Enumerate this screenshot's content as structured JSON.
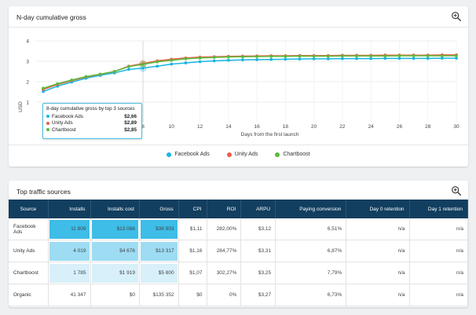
{
  "chart_card": {
    "title": "N-day cumulative gross",
    "legend_facebook": "Facebook Ads",
    "legend_unity": "Unity Ads",
    "legend_chartboost": "Chartboost"
  },
  "tooltip": {
    "title": "8-day cumulative gross by top 3 sources",
    "rows": [
      {
        "name": "Facebook Ads",
        "value": "$2,66"
      },
      {
        "name": "Unity Ads",
        "value": "$2,89"
      },
      {
        "name": "Chartboost",
        "value": "$2,85"
      }
    ]
  },
  "chart_data": {
    "type": "line",
    "title": "N-day cumulative gross",
    "xlabel": "Days from the first launch",
    "ylabel": "USD",
    "xlim": [
      0,
      30
    ],
    "ylim": [
      0,
      4
    ],
    "x_ticks": [
      8,
      10,
      12,
      14,
      16,
      18,
      20,
      22,
      24,
      26,
      28,
      30
    ],
    "y_ticks": [
      1,
      2,
      3,
      4
    ],
    "grid": true,
    "legend_position": "bottom",
    "x": [
      1,
      2,
      3,
      4,
      5,
      6,
      7,
      8,
      9,
      10,
      11,
      12,
      13,
      14,
      15,
      16,
      17,
      18,
      19,
      20,
      21,
      22,
      23,
      24,
      25,
      26,
      27,
      28,
      29,
      30
    ],
    "series": [
      {
        "name": "Facebook Ads",
        "color": "#1bb6e4",
        "values": [
          1.52,
          1.78,
          1.98,
          2.17,
          2.31,
          2.43,
          2.6,
          2.66,
          2.76,
          2.86,
          2.92,
          2.98,
          3.02,
          3.05,
          3.07,
          3.08,
          3.09,
          3.1,
          3.11,
          3.12,
          3.12,
          3.13,
          3.13,
          3.13,
          3.14,
          3.14,
          3.14,
          3.14,
          3.15,
          3.15
        ]
      },
      {
        "name": "Unity Ads",
        "color": "#ef5b4a",
        "values": [
          1.62,
          1.86,
          2.05,
          2.23,
          2.36,
          2.5,
          2.76,
          2.89,
          3.02,
          3.1,
          3.16,
          3.2,
          3.22,
          3.24,
          3.25,
          3.26,
          3.27,
          3.27,
          3.28,
          3.28,
          3.28,
          3.29,
          3.29,
          3.29,
          3.3,
          3.3,
          3.3,
          3.3,
          3.31,
          3.31
        ]
      },
      {
        "name": "Chartboost",
        "color": "#5bba3b",
        "values": [
          1.68,
          1.9,
          2.08,
          2.25,
          2.37,
          2.5,
          2.74,
          2.85,
          2.97,
          3.05,
          3.12,
          3.16,
          3.19,
          3.21,
          3.22,
          3.23,
          3.24,
          3.24,
          3.25,
          3.25,
          3.25,
          3.26,
          3.26,
          3.26,
          3.26,
          3.27,
          3.27,
          3.27,
          3.27,
          3.27
        ]
      }
    ]
  },
  "table_card": {
    "title": "Top traffic sources",
    "headers": [
      "Source",
      "Installs",
      "Installs cost",
      "Gross",
      "CPI",
      "ROI",
      "ARPU",
      "Paying conversion",
      "Day 0 retention",
      "Day 1 retention"
    ],
    "rows": [
      [
        "Facebook Ads",
        "11 809",
        "$13 086",
        "$36 903",
        "$1,11",
        "282,00%",
        "$3,12",
        "6,51%",
        "n/a",
        "n/a"
      ],
      [
        "Unity Ads",
        "4 019",
        "$4 676",
        "$13 317",
        "$1,16",
        "284,77%",
        "$3,31",
        "6,87%",
        "n/a",
        "n/a"
      ],
      [
        "Chartboost",
        "1 785",
        "$1 919",
        "$5 800",
        "$1,07",
        "302,27%",
        "$3,25",
        "7,79%",
        "n/a",
        "n/a"
      ],
      [
        "Organic",
        "41 347",
        "$0",
        "$135 352",
        "$0",
        "0%",
        "$3,27",
        "6,73%",
        "n/a",
        "n/a"
      ]
    ]
  },
  "colors": {
    "header_bg": "#123e5f",
    "heat_strong": "#3dbde8",
    "heat_medium": "#9ddcf3",
    "heat_light": "#d8f0fa"
  }
}
